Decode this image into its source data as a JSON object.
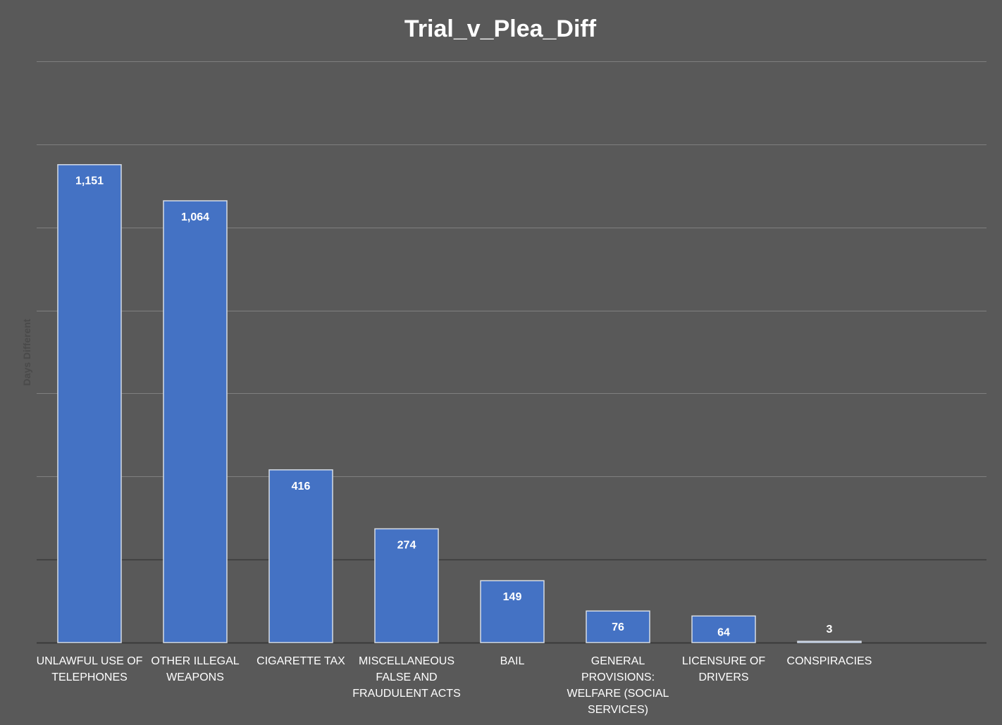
{
  "chart_data": {
    "type": "bar",
    "title": "Trial_v_Plea_Diff",
    "xlabel": "",
    "ylabel": "Days Different",
    "ylim": [
      0,
      1400
    ],
    "gridlines": [
      200,
      400,
      600,
      800,
      1000,
      1200,
      1400
    ],
    "grid": true,
    "legend": "none",
    "data_labels": true,
    "categories": [
      [
        "UNLAWFUL USE OF",
        "TELEPHONES"
      ],
      [
        "OTHER ILLEGAL",
        "WEAPONS"
      ],
      [
        "CIGARETTE TAX"
      ],
      [
        "MISCELLANEOUS",
        "FALSE AND",
        "FRAUDULENT ACTS"
      ],
      [
        "BAIL"
      ],
      [
        "GENERAL",
        "PROVISIONS:",
        "WELFARE (SOCIAL",
        "SERVICES)"
      ],
      [
        "LICENSURE OF",
        "DRIVERS"
      ],
      [
        "CONSPIRACIES"
      ]
    ],
    "values": [
      1151,
      1064,
      416,
      274,
      149,
      76,
      64,
      3
    ],
    "value_labels": [
      "1,151",
      "1,064",
      "416",
      "274",
      "149",
      "76",
      "64",
      "3"
    ]
  },
  "colors": {
    "background": "#595959",
    "bar_fill": "#4472C4",
    "bar_stroke": "#D6DCE5",
    "gridline": "#7F7F7F",
    "highlight_gridline": "#3A3A3A",
    "axis_line": "#3A3A3A",
    "text": "#FFFFFF",
    "axis_title": "#4A4A4A"
  }
}
